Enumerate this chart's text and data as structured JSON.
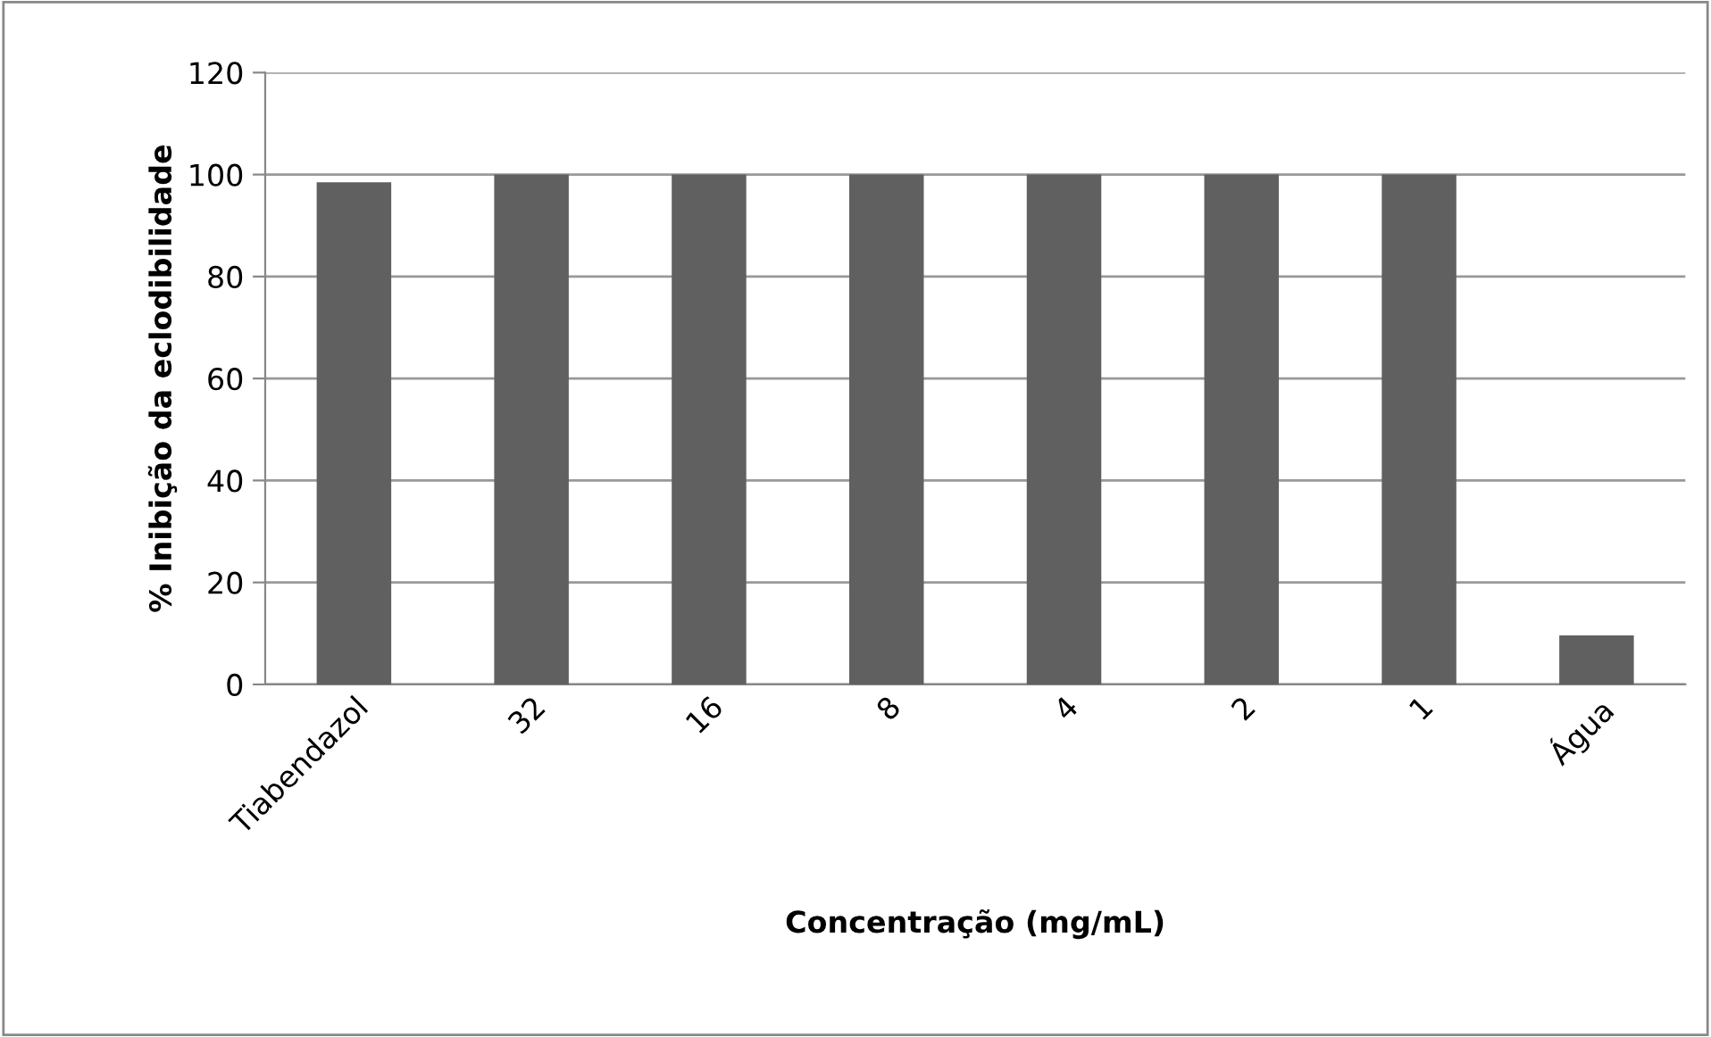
{
  "chart_data": {
    "type": "bar",
    "xlabel": "Concentração (mg/mL)",
    "ylabel": "% Inibição da eclodibilidade",
    "categories": [
      "Tiabendazol",
      "32",
      "16",
      "8",
      "4",
      "2",
      "1",
      "Água"
    ],
    "values": [
      98.5,
      100,
      100,
      100,
      100,
      100,
      100,
      9.6
    ],
    "color": "#606060",
    "ylim": [
      0,
      120
    ],
    "yticks": [
      0,
      20,
      40,
      60,
      80,
      100,
      120
    ],
    "grid": "y",
    "legend": false
  }
}
